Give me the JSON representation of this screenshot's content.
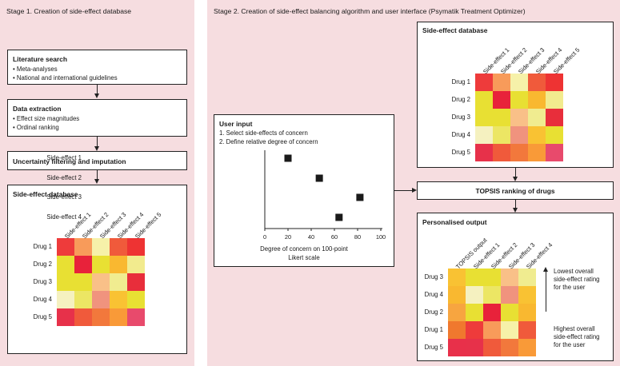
{
  "stage1": {
    "title": "Stage 1. Creation of side-effect database",
    "literature": {
      "title": "Literature search",
      "items": [
        "• Meta-analyses",
        "• National and international guidelines"
      ]
    },
    "extraction": {
      "title": "Data extraction",
      "items": [
        "• Effect size magnitudes",
        "• Ordinal ranking"
      ]
    },
    "uncertainty": {
      "title": "Uncertainty filtering and imputation"
    },
    "database": {
      "title": "Side-effect database"
    }
  },
  "stage2": {
    "title": "Stage 2. Creation of side-effect balancing algorithm and user interface (Psymatik Treatment Optimizer)",
    "database": {
      "title": "Side-effect database"
    },
    "user_input": {
      "title": "User input",
      "steps": [
        "1. Select side-effects of concern",
        "2. Define relative degree of concern"
      ],
      "xlabel_line1": "Degree of concern on 100-point",
      "xlabel_line2": "Likert scale"
    },
    "topsis": {
      "title": "TOPSIS ranking of drugs"
    },
    "output": {
      "title": "Personalised output"
    },
    "annotations": {
      "lowest": [
        "Lowest overall",
        "side-effect rating",
        "for the user"
      ],
      "highest": [
        "Highest overall",
        "side-effect rating",
        "for the user"
      ]
    }
  },
  "heatmap": {
    "columns": [
      "Side-effect 1",
      "Side-effect 2",
      "Side-effect 3",
      "Side-effect 4",
      "Side-effect 5"
    ],
    "rows": [
      "Drug 1",
      "Drug 2",
      "Drug 3",
      "Drug 4",
      "Drug 5"
    ],
    "colors": [
      [
        "#ee3b3b",
        "#f89b5a",
        "#f6f1a9",
        "#f05a3b",
        "#ee3333"
      ],
      [
        "#e8e033",
        "#e8223a",
        "#e8e033",
        "#f9b830",
        "#f2eb8e"
      ],
      [
        "#e8e033",
        "#e8e033",
        "#f9c088",
        "#f0ec90",
        "#e82e3b"
      ],
      [
        "#f5f1c0",
        "#ece664",
        "#f0937e",
        "#f9c233",
        "#e8e033"
      ],
      [
        "#e7314a",
        "#f05a3b",
        "#f2783c",
        "#f99a38",
        "#e84a6c"
      ]
    ]
  },
  "output_heatmap": {
    "columns": [
      "TOPSIS output",
      "Side-effect 1",
      "Side-effect 2",
      "Side-effect 3",
      "Side-effect 4"
    ],
    "rows": [
      "Drug 3",
      "Drug 4",
      "Drug 2",
      "Drug 1",
      "Drug 5"
    ],
    "colors": [
      [
        "#f9c233",
        "#e8e033",
        "#e8e033",
        "#f9c088",
        "#f0ec90"
      ],
      [
        "#f9b830",
        "#f5f1c0",
        "#ece664",
        "#f0937e",
        "#f9c233"
      ],
      [
        "#f7a540",
        "#e8e033",
        "#e8223a",
        "#e8e033",
        "#f9b830"
      ],
      [
        "#f0782e",
        "#ee3b3b",
        "#f89b5a",
        "#f6f1a9",
        "#f05a3b"
      ],
      [
        "#e8304a",
        "#e7314a",
        "#f05a3b",
        "#f2783c",
        "#f99a38"
      ]
    ]
  },
  "chart_data": {
    "type": "scatter",
    "title": "",
    "xlabel": "Degree of concern on 100-point Likert scale",
    "ylabel": "",
    "categories": [
      "Side-effect 1",
      "Side-effect 2",
      "Side-effect 3",
      "Side-effect 4"
    ],
    "values": [
      20,
      47,
      82,
      64
    ],
    "xlim": [
      0,
      100
    ],
    "xticks": [
      0,
      20,
      40,
      60,
      80,
      100
    ]
  }
}
